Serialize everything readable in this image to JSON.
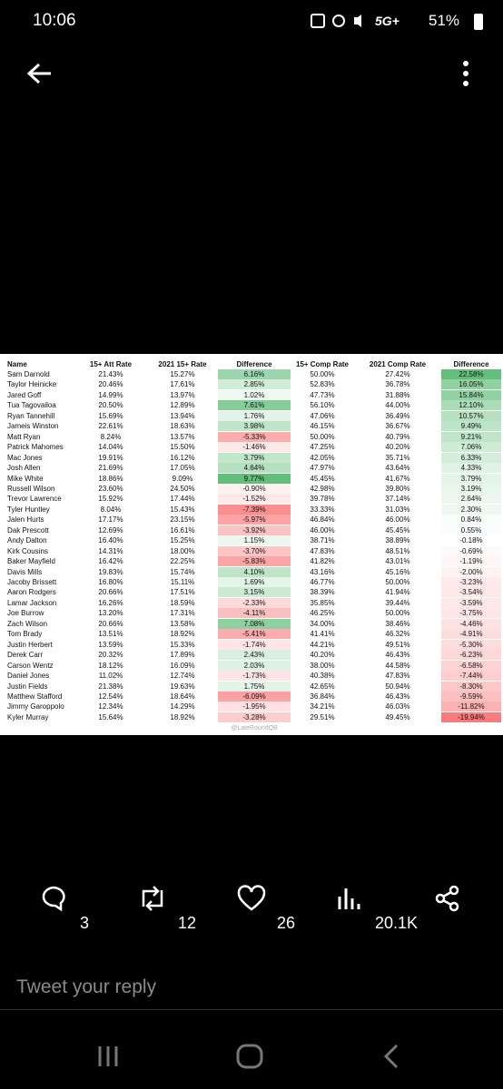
{
  "status_bar": {
    "time": "10:06",
    "network": "5G+",
    "battery": "51%"
  },
  "table": {
    "headers": [
      "Name",
      "15+ Att Rate",
      "2021 15+ Rate",
      "Difference",
      "15+ Comp Rate",
      "2021 Comp Rate",
      "Difference"
    ],
    "rows": [
      [
        "Sam Darnold",
        "21.43%",
        "15.27%",
        "6.16%",
        "50.00%",
        "27.42%",
        "22.58%"
      ],
      [
        "Taylor Heinicke",
        "20.46%",
        "17.61%",
        "2.85%",
        "52.83%",
        "36.78%",
        "16.05%"
      ],
      [
        "Jared Goff",
        "14.99%",
        "13.97%",
        "1.02%",
        "47.73%",
        "31.88%",
        "15.84%"
      ],
      [
        "Tua Tagovailoa",
        "20.50%",
        "12.89%",
        "7.61%",
        "56.10%",
        "44.00%",
        "12.10%"
      ],
      [
        "Ryan Tannehill",
        "15.69%",
        "13.94%",
        "1.76%",
        "47.06%",
        "36.49%",
        "10.57%"
      ],
      [
        "Jameis Winston",
        "22.61%",
        "18.63%",
        "3.98%",
        "46.15%",
        "36.67%",
        "9.49%"
      ],
      [
        "Matt Ryan",
        "8.24%",
        "13.57%",
        "-5.33%",
        "50.00%",
        "40.79%",
        "9.21%"
      ],
      [
        "Patrick Mahomes",
        "14.04%",
        "15.50%",
        "-1.46%",
        "47.25%",
        "40.20%",
        "7.06%"
      ],
      [
        "Mac Jones",
        "19.91%",
        "16.12%",
        "3.79%",
        "42.05%",
        "35.71%",
        "6.33%"
      ],
      [
        "Josh Allen",
        "21.69%",
        "17.05%",
        "4.64%",
        "47.97%",
        "43.64%",
        "4.33%"
      ],
      [
        "Mike White",
        "18.86%",
        "9.09%",
        "9.77%",
        "45.45%",
        "41.67%",
        "3.79%"
      ],
      [
        "Russell Wilson",
        "23.60%",
        "24.50%",
        "-0.90%",
        "42.98%",
        "39.80%",
        "3.19%"
      ],
      [
        "Trevor Lawrence",
        "15.92%",
        "17.44%",
        "-1.52%",
        "39.78%",
        "37.14%",
        "2.64%"
      ],
      [
        "Tyler Huntley",
        "8.04%",
        "15.43%",
        "-7.39%",
        "33.33%",
        "31.03%",
        "2.30%"
      ],
      [
        "Jalen Hurts",
        "17.17%",
        "23.15%",
        "-5.97%",
        "46.84%",
        "46.00%",
        "0.84%"
      ],
      [
        "Dak Prescott",
        "12.69%",
        "16.61%",
        "-3.92%",
        "46.00%",
        "45.45%",
        "0.55%"
      ],
      [
        "Andy Dalton",
        "16.40%",
        "15.25%",
        "1.15%",
        "38.71%",
        "38.89%",
        "-0.18%"
      ],
      [
        "Kirk Cousins",
        "14.31%",
        "18.00%",
        "-3.70%",
        "47.83%",
        "48.51%",
        "-0.69%"
      ],
      [
        "Baker Mayfield",
        "16.42%",
        "22.25%",
        "-5.83%",
        "41.82%",
        "43.01%",
        "-1.19%"
      ],
      [
        "Davis Mills",
        "19.83%",
        "15.74%",
        "4.10%",
        "43.16%",
        "45.16%",
        "-2.00%"
      ],
      [
        "Jacoby Brissett",
        "16.80%",
        "15.11%",
        "1.69%",
        "46.77%",
        "50.00%",
        "-3.23%"
      ],
      [
        "Aaron Rodgers",
        "20.66%",
        "17.51%",
        "3.15%",
        "38.39%",
        "41.94%",
        "-3.54%"
      ],
      [
        "Lamar Jackson",
        "16.26%",
        "18.59%",
        "-2.33%",
        "35.85%",
        "39.44%",
        "-3.59%"
      ],
      [
        "Joe Burrow",
        "13.20%",
        "17.31%",
        "-4.11%",
        "46.25%",
        "50.00%",
        "-3.75%"
      ],
      [
        "Zach Wilson",
        "20.66%",
        "13.58%",
        "7.08%",
        "34.00%",
        "38.46%",
        "-4.46%"
      ],
      [
        "Tom Brady",
        "13.51%",
        "18.92%",
        "-5.41%",
        "41.41%",
        "46.32%",
        "-4.91%"
      ],
      [
        "Justin Herbert",
        "13.59%",
        "15.33%",
        "-1.74%",
        "44.21%",
        "49.51%",
        "-5.30%"
      ],
      [
        "Derek Carr",
        "20.32%",
        "17.89%",
        "2.43%",
        "40.20%",
        "46.43%",
        "-6.23%"
      ],
      [
        "Carson Wentz",
        "18.12%",
        "16.09%",
        "2.03%",
        "38.00%",
        "44.58%",
        "-6.58%"
      ],
      [
        "Daniel Jones",
        "11.02%",
        "12.74%",
        "-1.73%",
        "40.38%",
        "47.83%",
        "-7.44%"
      ],
      [
        "Justin Fields",
        "21.38%",
        "19.63%",
        "1.75%",
        "42.65%",
        "50.94%",
        "-8.30%"
      ],
      [
        "Matthew Stafford",
        "12.54%",
        "18.64%",
        "-6.09%",
        "36.84%",
        "46.43%",
        "-9.59%"
      ],
      [
        "Jimmy Garoppolo",
        "12.34%",
        "14.29%",
        "-1.95%",
        "34.21%",
        "46.03%",
        "-11.82%"
      ],
      [
        "Kyler Murray",
        "15.64%",
        "18.92%",
        "-3.28%",
        "29.51%",
        "49.45%",
        "-19.94%"
      ]
    ]
  },
  "watermark": "@LateRoundQB",
  "actions": {
    "replies": "3",
    "retweets": "12",
    "likes": "26",
    "views": "20.1K"
  },
  "reply_placeholder": "Tweet your reply"
}
